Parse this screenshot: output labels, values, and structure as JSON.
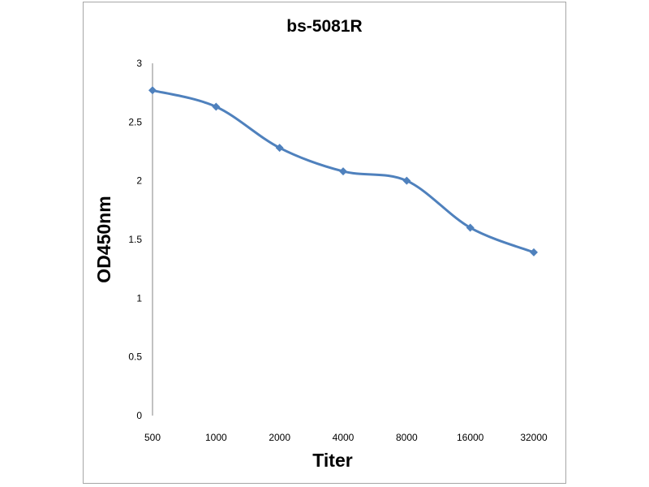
{
  "chart_data": {
    "type": "line",
    "title": "bs-5081R",
    "xlabel": "Titer",
    "ylabel": "OD450nm",
    "categories": [
      "500",
      "1000",
      "2000",
      "4000",
      "8000",
      "16000",
      "32000"
    ],
    "series": [
      {
        "values": [
          2.77,
          2.63,
          2.28,
          2.08,
          2.0,
          1.6,
          1.39
        ],
        "color": "#4f81bd",
        "marker": "diamond",
        "smooth": true
      }
    ],
    "ylim": [
      0,
      3
    ],
    "yticks": [
      0,
      0.5,
      1,
      1.5,
      2,
      2.5,
      3
    ],
    "ytick_labels": [
      "0",
      "0.5",
      "1",
      "1.5",
      "2",
      "2.5",
      "3"
    ],
    "grid": false,
    "legend": "none"
  }
}
